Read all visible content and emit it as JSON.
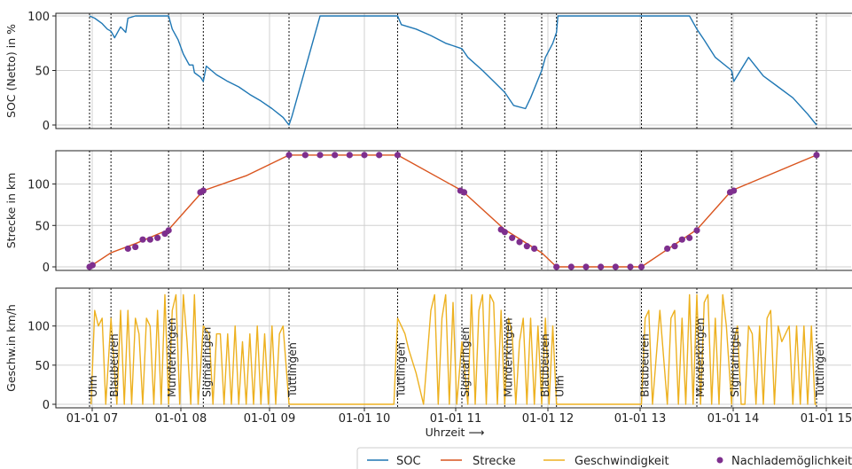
{
  "chart_data": {
    "type": "line",
    "xlabel": "Uhrzeit ⟶",
    "x_ticks": [
      "01-01 07",
      "01-01 08",
      "01-01 09",
      "01-01 10",
      "01-01 11",
      "01-01 12",
      "01-01 13",
      "01-01 14",
      "01-01 15"
    ],
    "xlim": [
      "01-01 06:30",
      "01-01 15:10"
    ],
    "grid": true,
    "legend_position": "bottom-right",
    "colors": {
      "SOC": "#1f77b4",
      "Strecke": "#d9541e",
      "Geschwindigkeit": "#edb120",
      "Nachlademoeglichkeit": "#7e2f8e"
    },
    "events": [
      {
        "t": 6.88,
        "label": "Ulm"
      },
      {
        "t": 7.17,
        "label": "Blaubeuren"
      },
      {
        "t": 7.95,
        "label": "Munderkingen"
      },
      {
        "t": 8.42,
        "label": "Sigmaringen"
      },
      {
        "t": 9.58,
        "label": "Tuttlingen"
      },
      {
        "t": 11.05,
        "label": "Tuttlingen"
      },
      {
        "t": 11.92,
        "label": "Sigmaringen"
      },
      {
        "t": 12.5,
        "label": "Munderkingen"
      },
      {
        "t": 13.0,
        "label": "Blaubeuren"
      },
      {
        "t": 13.2,
        "label": "Ulm"
      },
      {
        "t": 14.35,
        "label": "Blaubeuren"
      },
      {
        "t": 15.1,
        "label": "Munderkingen"
      },
      {
        "t": 15.57,
        "label": "Sigmaringen"
      },
      {
        "t": 16.72,
        "label": "Tuttlingen"
      }
    ],
    "panels": [
      {
        "ylabel": "SOC (Netto) in %",
        "ylim": [
          0,
          100
        ],
        "yticks": [
          "0",
          "50",
          "100"
        ],
        "series": [
          {
            "name": "SOC",
            "x": [
              6.88,
              6.95,
              7.05,
              7.12,
              7.17,
              7.22,
              7.3,
              7.37,
              7.4,
              7.5,
              7.95,
              8.0,
              8.08,
              8.15,
              8.23,
              8.28,
              8.3,
              8.38,
              8.42,
              8.46,
              8.6,
              8.75,
              8.9,
              9.05,
              9.2,
              9.35,
              9.5,
              9.58,
              9.62,
              10.0,
              10.3,
              11.05,
              11.1,
              11.3,
              11.5,
              11.7,
              11.92,
              12.0,
              12.2,
              12.35,
              12.5,
              12.62,
              12.78,
              12.85,
              13.0,
              13.05,
              13.15,
              13.2,
              13.22,
              15.0,
              15.1,
              15.2,
              15.35,
              15.57,
              15.6,
              15.8,
              16.0,
              16.2,
              16.4,
              16.6,
              16.72
            ],
            "y": [
              100,
              98,
              93,
              88,
              86,
              80,
              90,
              85,
              98,
              100,
              100,
              88,
              78,
              65,
              55,
              55,
              48,
              44,
              40,
              54,
              46,
              40,
              35,
              28,
              22,
              15,
              7,
              0,
              8,
              100,
              100,
              100,
              92,
              88,
              82,
              75,
              70,
              62,
              50,
              40,
              30,
              18,
              15,
              25,
              50,
              62,
              75,
              85,
              100,
              100,
              88,
              78,
              62,
              50,
              40,
              62,
              45,
              35,
              25,
              10,
              0
            ]
          }
        ]
      },
      {
        "ylabel": "Strecke in km",
        "ylim": [
          0,
          137
        ],
        "yticks": [
          "0",
          "50",
          "100"
        ],
        "series": [
          {
            "name": "Strecke",
            "x": [
              6.88,
              7.17,
              7.5,
              7.95,
              8.42,
              9.0,
              9.58,
              11.05,
              11.92,
              12.5,
              13.0,
              13.2,
              13.23,
              14.35,
              15.1,
              15.57,
              16.72
            ],
            "y": [
              0,
              17,
              28,
              45,
              92,
              110,
              135,
              135,
              92,
              45,
              17,
              0,
              0,
              0,
              45,
              92,
              135
            ]
          },
          {
            "name": "Nachlademöglichkeit",
            "x": [
              6.88,
              6.92,
              7.4,
              7.5,
              7.6,
              7.7,
              7.8,
              7.9,
              7.95,
              8.38,
              8.42,
              9.58,
              9.8,
              10.0,
              10.2,
              10.4,
              10.6,
              10.8,
              11.05,
              11.9,
              11.95,
              12.45,
              12.5,
              12.6,
              12.7,
              12.8,
              12.9,
              13.2,
              13.4,
              13.6,
              13.8,
              14.0,
              14.2,
              14.35,
              14.7,
              14.8,
              14.9,
              15.0,
              15.1,
              15.55,
              15.6,
              16.72
            ],
            "y": [
              0,
              2,
              22,
              24,
              33,
              33,
              35,
              40,
              44,
              90,
              92,
              135,
              135,
              135,
              135,
              135,
              135,
              135,
              135,
              92,
              90,
              45,
              42,
              35,
              30,
              25,
              22,
              0,
              0,
              0,
              0,
              0,
              0,
              0,
              22,
              25,
              33,
              35,
              44,
              90,
              92,
              135
            ]
          }
        ]
      },
      {
        "ylabel": "Geschw.in km/h",
        "ylim": [
          0,
          145
        ],
        "yticks": [
          "0",
          "50",
          "100"
        ],
        "series": [
          {
            "name": "Geschwindigkeit",
            "x": [
              6.9,
              6.95,
              7.0,
              7.05,
              7.1,
              7.17,
              7.25,
              7.3,
              7.35,
              7.4,
              7.45,
              7.5,
              7.55,
              7.6,
              7.65,
              7.7,
              7.75,
              7.8,
              7.85,
              7.9,
              7.95,
              8.0,
              8.05,
              8.1,
              8.15,
              8.2,
              8.25,
              8.3,
              8.35,
              8.42,
              8.5,
              8.55,
              8.6,
              8.65,
              8.7,
              8.75,
              8.8,
              8.85,
              8.9,
              8.95,
              9.0,
              9.05,
              9.1,
              9.15,
              9.2,
              9.25,
              9.3,
              9.35,
              9.4,
              9.45,
              9.5,
              9.58,
              9.62,
              11.0,
              11.05,
              11.1,
              11.15,
              11.2,
              11.3,
              11.4,
              11.5,
              11.55,
              11.6,
              11.65,
              11.7,
              11.75,
              11.8,
              11.85,
              11.92,
              12.0,
              12.05,
              12.1,
              12.15,
              12.2,
              12.25,
              12.3,
              12.35,
              12.4,
              12.45,
              12.5,
              12.55,
              12.6,
              12.65,
              12.7,
              12.75,
              12.8,
              12.85,
              12.9,
              12.95,
              13.0,
              13.05,
              13.1,
              13.15,
              13.2,
              13.25,
              14.3,
              14.35,
              14.4,
              14.45,
              14.5,
              14.6,
              14.7,
              14.75,
              14.8,
              14.85,
              14.9,
              14.95,
              15.0,
              15.05,
              15.1,
              15.15,
              15.2,
              15.25,
              15.3,
              15.35,
              15.4,
              15.45,
              15.5,
              15.57,
              15.6,
              15.65,
              15.7,
              15.75,
              15.8,
              15.85,
              15.9,
              15.95,
              16.0,
              16.05,
              16.1,
              16.15,
              16.2,
              16.25,
              16.3,
              16.35,
              16.4,
              16.45,
              16.5,
              16.55,
              16.6,
              16.65,
              16.7,
              16.72
            ],
            "y": [
              0,
              120,
              100,
              110,
              0,
              110,
              0,
              120,
              0,
              120,
              0,
              110,
              90,
              0,
              110,
              100,
              0,
              120,
              0,
              140,
              0,
              120,
              140,
              0,
              140,
              80,
              0,
              140,
              0,
              100,
              90,
              0,
              90,
              90,
              0,
              90,
              0,
              100,
              0,
              80,
              0,
              90,
              0,
              100,
              0,
              90,
              0,
              100,
              0,
              90,
              100,
              0,
              0,
              0,
              110,
              100,
              90,
              70,
              40,
              0,
              120,
              140,
              0,
              110,
              140,
              0,
              130,
              0,
              80,
              0,
              140,
              0,
              120,
              140,
              0,
              140,
              130,
              0,
              120,
              0,
              110,
              90,
              0,
              80,
              110,
              0,
              110,
              0,
              100,
              0,
              110,
              0,
              100,
              0,
              0,
              0,
              0,
              110,
              120,
              0,
              120,
              0,
              110,
              120,
              0,
              110,
              0,
              140,
              0,
              140,
              0,
              130,
              140,
              0,
              110,
              0,
              140,
              100,
              0,
              80,
              100,
              0,
              0,
              100,
              90,
              0,
              100,
              0,
              110,
              120,
              0,
              100,
              80,
              90,
              100,
              0,
              100,
              0,
              100,
              0,
              100,
              0,
              0
            ]
          }
        ]
      }
    ],
    "legend": [
      "SOC",
      "Strecke",
      "Geschwindigkeit",
      "Nachlademöglichkeit"
    ]
  }
}
